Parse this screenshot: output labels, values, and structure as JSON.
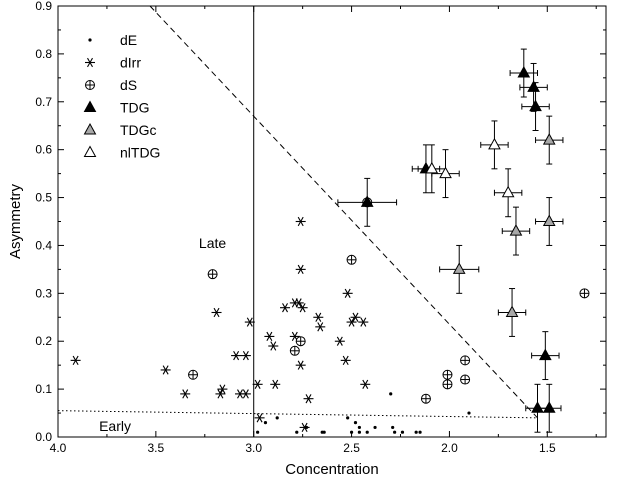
{
  "chart_data": {
    "type": "scatter",
    "title": "",
    "xlabel": "Concentration",
    "ylabel": "Asymmetry",
    "xlim": [
      4.0,
      1.2
    ],
    "ylim": [
      0.0,
      0.9
    ],
    "x_reversed": true,
    "x_ticks": [
      4.0,
      3.5,
      3.0,
      2.5,
      2.0,
      1.5
    ],
    "x_tick_labels": [
      "4.0",
      "3.5",
      "3.0",
      "2.5",
      "2.0",
      "1.5"
    ],
    "y_ticks": [
      0.0,
      0.1,
      0.2,
      0.3,
      0.4,
      0.5,
      0.6,
      0.7,
      0.8,
      0.9
    ],
    "y_tick_labels": [
      "0.0",
      "0.1",
      "0.2",
      "0.3",
      "0.4",
      "0.5",
      "0.6",
      "0.7",
      "0.8",
      "0.9"
    ],
    "grid": false,
    "legend_position": "top-left",
    "annotations": [
      {
        "text": "Late",
        "x": 3.28,
        "y": 0.405
      },
      {
        "text": "Early",
        "x": 3.79,
        "y": 0.023
      }
    ],
    "reference_lines": [
      {
        "style": "solid",
        "points": [
          [
            3.0,
            0.0
          ],
          [
            3.0,
            0.9
          ]
        ]
      },
      {
        "style": "dashed",
        "points": [
          [
            3.53,
            0.9
          ],
          [
            1.55,
            0.04
          ]
        ]
      },
      {
        "style": "dotted",
        "points": [
          [
            4.0,
            0.055
          ],
          [
            1.55,
            0.04
          ]
        ]
      }
    ],
    "series": [
      {
        "name": "dE",
        "marker": "dot",
        "points": [
          [
            2.98,
            0.01
          ],
          [
            2.94,
            0.03
          ],
          [
            2.88,
            0.04
          ],
          [
            2.78,
            0.01
          ],
          [
            2.73,
            0.02
          ],
          [
            2.65,
            0.01
          ],
          [
            2.64,
            0.01
          ],
          [
            2.52,
            0.04
          ],
          [
            2.5,
            0.01
          ],
          [
            2.48,
            0.03
          ],
          [
            2.46,
            0.02
          ],
          [
            2.46,
            0.01
          ],
          [
            2.42,
            0.01
          ],
          [
            2.38,
            0.02
          ],
          [
            2.3,
            0.09
          ],
          [
            2.29,
            0.02
          ],
          [
            2.28,
            0.01
          ],
          [
            2.24,
            0.01
          ],
          [
            2.17,
            0.01
          ],
          [
            2.15,
            0.01
          ],
          [
            1.9,
            0.05
          ]
        ]
      },
      {
        "name": "dIrr",
        "marker": "asterisk",
        "points": [
          [
            3.91,
            0.16
          ],
          [
            3.45,
            0.14
          ],
          [
            3.35,
            0.09
          ],
          [
            3.19,
            0.26
          ],
          [
            3.17,
            0.09
          ],
          [
            3.16,
            0.1
          ],
          [
            3.09,
            0.17
          ],
          [
            3.07,
            0.09
          ],
          [
            3.04,
            0.17
          ],
          [
            3.04,
            0.09
          ],
          [
            3.02,
            0.24
          ],
          [
            2.98,
            0.11
          ],
          [
            2.97,
            0.04
          ],
          [
            2.92,
            0.21
          ],
          [
            2.89,
            0.11
          ],
          [
            2.9,
            0.19
          ],
          [
            2.84,
            0.27
          ],
          [
            2.79,
            0.28
          ],
          [
            2.79,
            0.21
          ],
          [
            2.77,
            0.28
          ],
          [
            2.76,
            0.45
          ],
          [
            2.76,
            0.35
          ],
          [
            2.76,
            0.15
          ],
          [
            2.75,
            0.27
          ],
          [
            2.74,
            0.02
          ],
          [
            2.72,
            0.08
          ],
          [
            2.67,
            0.25
          ],
          [
            2.66,
            0.23
          ],
          [
            2.56,
            0.2
          ],
          [
            2.53,
            0.16
          ],
          [
            2.52,
            0.3
          ],
          [
            2.5,
            0.24
          ],
          [
            2.48,
            0.25
          ],
          [
            2.44,
            0.24
          ],
          [
            2.43,
            0.11
          ]
        ]
      },
      {
        "name": "dS",
        "marker": "circle-plus",
        "points": [
          [
            3.21,
            0.34
          ],
          [
            3.31,
            0.13
          ],
          [
            2.79,
            0.18
          ],
          [
            2.76,
            0.2
          ],
          [
            2.5,
            0.37
          ],
          [
            2.42,
            0.49
          ],
          [
            2.12,
            0.08
          ],
          [
            2.01,
            0.11
          ],
          [
            2.01,
            0.13
          ],
          [
            1.92,
            0.12
          ],
          [
            1.92,
            0.16
          ],
          [
            1.31,
            0.3
          ]
        ]
      },
      {
        "name": "TDG",
        "marker": "triangle-filled",
        "points": [
          [
            2.42,
            0.49
          ],
          [
            2.12,
            0.56
          ],
          [
            1.62,
            0.76
          ],
          [
            1.57,
            0.73
          ],
          [
            1.56,
            0.69
          ],
          [
            1.51,
            0.17
          ],
          [
            1.55,
            0.06
          ],
          [
            1.49,
            0.06
          ]
        ],
        "xerr": [
          0.15,
          0.07,
          0.07,
          0.07,
          0.07,
          0.07,
          0.06,
          0.06
        ],
        "yerr": [
          0.05,
          0.05,
          0.05,
          0.05,
          0.05,
          0.05,
          0.05,
          0.05
        ]
      },
      {
        "name": "TDGc",
        "marker": "triangle-gray",
        "points": [
          [
            1.49,
            0.62
          ],
          [
            1.49,
            0.45
          ],
          [
            1.66,
            0.43
          ],
          [
            1.68,
            0.26
          ],
          [
            1.95,
            0.35
          ]
        ],
        "xerr": [
          0.07,
          0.07,
          0.07,
          0.07,
          0.1
        ],
        "yerr": [
          0.05,
          0.05,
          0.05,
          0.05,
          0.05
        ]
      },
      {
        "name": "nlTDG",
        "marker": "triangle-open",
        "points": [
          [
            2.09,
            0.56
          ],
          [
            2.02,
            0.55
          ],
          [
            1.77,
            0.61
          ],
          [
            1.7,
            0.51
          ]
        ],
        "xerr": [
          0.07,
          0.07,
          0.07,
          0.07
        ],
        "yerr": [
          0.05,
          0.05,
          0.05,
          0.05
        ]
      }
    ]
  }
}
